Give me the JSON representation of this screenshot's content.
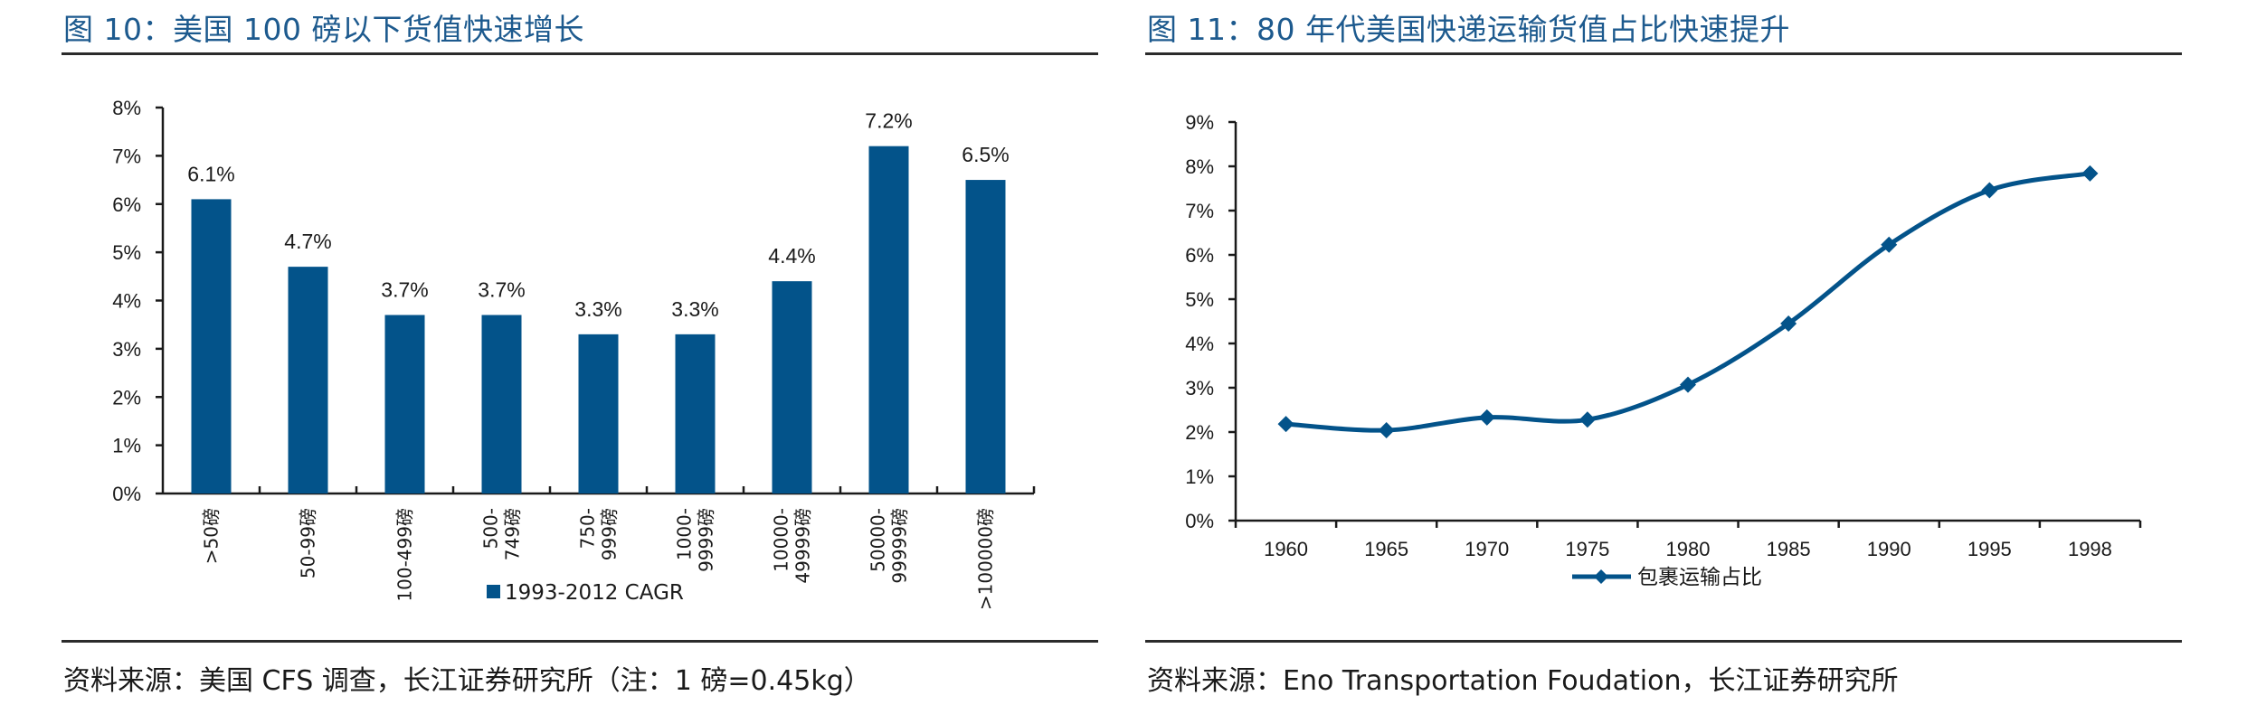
{
  "panels": {
    "left": {
      "title": "图 10：美国 100 磅以下货值快速增长",
      "source": "资料来源：美国 CFS 调查，长江证券研究所（注：1 磅=0.45kg）"
    },
    "right": {
      "title": "图 11：80 年代美国快递运输货值占比快速提升",
      "source": "资料来源：Eno Transportation Foudation，长江证券研究所"
    }
  },
  "colors": {
    "title": "#1d5a8e",
    "series": "#03538a",
    "axis": "#1a1a1a",
    "rule": "#2b2b2b"
  },
  "chart_data": [
    {
      "type": "bar",
      "title": "图 10：美国 100 磅以下货值快速增长",
      "xlabel": "",
      "ylabel": "",
      "categories": [
        [
          ">50磅"
        ],
        [
          "50-99磅"
        ],
        [
          "100-499磅"
        ],
        [
          "500-",
          "749磅"
        ],
        [
          "750-",
          "999磅"
        ],
        [
          "1000-",
          "9999磅"
        ],
        [
          "10000-",
          "49999磅"
        ],
        [
          "50000-",
          "99999磅"
        ],
        [
          ">100000磅"
        ]
      ],
      "series": [
        {
          "name": "1993-2012 CAGR",
          "values": [
            6.1,
            4.7,
            3.7,
            3.7,
            3.3,
            3.3,
            4.4,
            7.2,
            6.5
          ],
          "labels": [
            "6.1%",
            "4.7%",
            "3.7%",
            "3.7%",
            "3.3%",
            "3.3%",
            "4.4%",
            "7.2%",
            "6.5%"
          ]
        }
      ],
      "ylim": [
        0,
        8
      ],
      "yticks": [
        "0%",
        "1%",
        "2%",
        "3%",
        "4%",
        "5%",
        "6%",
        "7%",
        "8%"
      ],
      "grid": false,
      "legend": "bottom"
    },
    {
      "type": "line",
      "title": "图 11：80 年代美国快递运输货值占比快速提升",
      "xlabel": "",
      "ylabel": "",
      "categories": [
        "1960",
        "1965",
        "1970",
        "1975",
        "1980",
        "1985",
        "1990",
        "1995",
        "1998"
      ],
      "series": [
        {
          "name": "包裹运输占比",
          "values": [
            2.18,
            2.04,
            2.33,
            2.28,
            3.07,
            4.45,
            6.23,
            7.46,
            7.84
          ],
          "marker": "diamond",
          "smooth": true
        }
      ],
      "ylim": [
        0,
        9
      ],
      "yticks": [
        "0%",
        "1%",
        "2%",
        "3%",
        "4%",
        "5%",
        "6%",
        "7%",
        "8%",
        "9%"
      ],
      "grid": false,
      "legend": "bottom"
    }
  ]
}
